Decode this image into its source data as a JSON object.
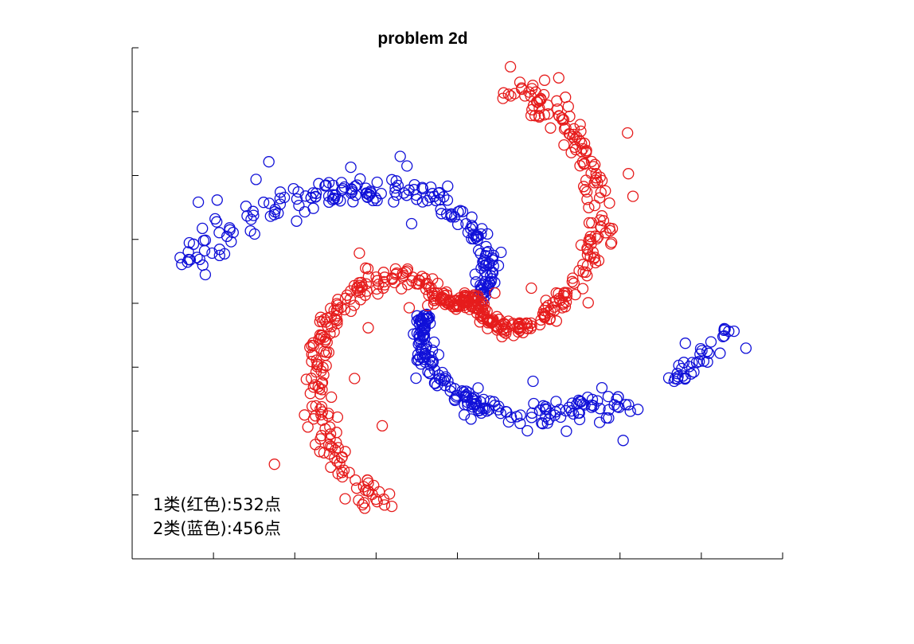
{
  "chart_data": {
    "type": "scatter",
    "title": "problem 2d",
    "xlabel": "",
    "ylabel": "",
    "xlim": [
      -8,
      8
    ],
    "ylim": [
      -8,
      8
    ],
    "x_ticks": [
      -8,
      -6,
      -4,
      -2,
      0,
      2,
      4,
      6,
      8
    ],
    "y_ticks": [
      -8,
      -6,
      -4,
      -2,
      0,
      2,
      4,
      6,
      8
    ],
    "tick_labels_shown": false,
    "grid": false,
    "marker": "open-circle",
    "annotations": [
      "1类(红色):532点",
      "2类(蓝色):456点"
    ],
    "series": [
      {
        "class": 1,
        "color": "#e61c1c",
        "count": 532
      },
      {
        "class": 2,
        "color": "#1010d8",
        "count": 456
      }
    ]
  },
  "colors": {
    "class1": "#e61c1c",
    "class2": "#1010d8",
    "axes": "#000000",
    "background": "#ffffff"
  }
}
